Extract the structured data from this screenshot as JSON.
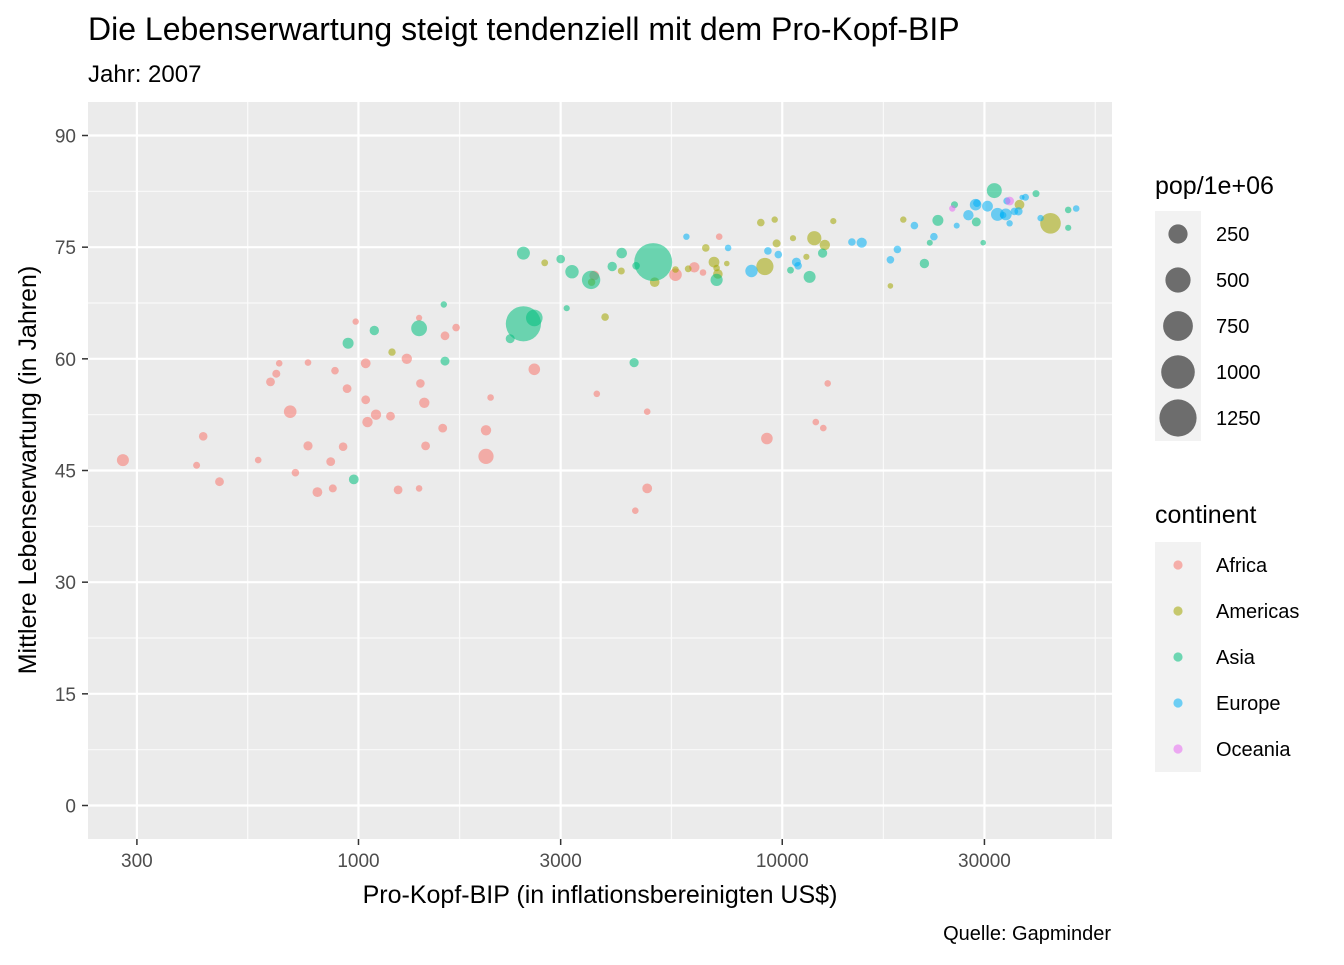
{
  "chart_data": {
    "type": "scatter",
    "title": "Die Lebenserwartung steigt tendenziell mit dem Pro-Kopf-BIP",
    "subtitle": "Jahr: 2007",
    "xlabel": "Pro-Kopf-BIP (in inflationsbereinigten US$)",
    "ylabel": "Mittlere Lebenserwartung (in Jahren)",
    "caption": "Quelle: Gapminder",
    "x_scale": "log10",
    "xlim": [
      230,
      60000
    ],
    "ylim": [
      -4.5,
      94.5
    ],
    "x_ticks": [
      300,
      1000,
      3000,
      10000,
      30000
    ],
    "x_tick_labels": [
      "300",
      "1000",
      "3000",
      "10000",
      "30000"
    ],
    "y_ticks": [
      0,
      15,
      30,
      45,
      60,
      75,
      90
    ],
    "y_tick_labels": [
      "0",
      "15",
      "30",
      "45",
      "60",
      "75",
      "90"
    ],
    "grid": true,
    "legend_position": "right",
    "size_legend": {
      "title": "pop/1e+06",
      "values": [
        250,
        500,
        750,
        1000,
        1250
      ],
      "labels": [
        "250",
        "500",
        "750",
        "1000",
        "1250"
      ]
    },
    "color_legend": {
      "title": "continent",
      "entries": [
        {
          "name": "Africa",
          "color": "#F8766D"
        },
        {
          "name": "Americas",
          "color": "#A3A500"
        },
        {
          "name": "Asia",
          "color": "#00BF7D"
        },
        {
          "name": "Europe",
          "color": "#00B0F6"
        },
        {
          "name": "Oceania",
          "color": "#E76BF3"
        }
      ]
    },
    "series": [
      {
        "name": "Africa",
        "color": "#F8766D",
        "points": [
          {
            "x": 278,
            "y": 46.4,
            "pop": 64
          },
          {
            "x": 415,
            "y": 45.7,
            "pop": 7
          },
          {
            "x": 430,
            "y": 49.6,
            "pop": 18
          },
          {
            "x": 470,
            "y": 43.5,
            "pop": 20
          },
          {
            "x": 580,
            "y": 46.4,
            "pop": 5
          },
          {
            "x": 620,
            "y": 56.9,
            "pop": 20
          },
          {
            "x": 640,
            "y": 58.0,
            "pop": 14
          },
          {
            "x": 650,
            "y": 59.4,
            "pop": 5
          },
          {
            "x": 690,
            "y": 52.9,
            "pop": 76
          },
          {
            "x": 710,
            "y": 44.7,
            "pop": 10
          },
          {
            "x": 760,
            "y": 48.3,
            "pop": 25
          },
          {
            "x": 760,
            "y": 59.5,
            "pop": 5
          },
          {
            "x": 800,
            "y": 42.1,
            "pop": 32
          },
          {
            "x": 860,
            "y": 46.2,
            "pop": 20
          },
          {
            "x": 870,
            "y": 42.6,
            "pop": 14
          },
          {
            "x": 880,
            "y": 58.4,
            "pop": 10
          },
          {
            "x": 920,
            "y": 48.2,
            "pop": 18
          },
          {
            "x": 940,
            "y": 56.0,
            "pop": 20
          },
          {
            "x": 985,
            "y": 65.0,
            "pop": 4
          },
          {
            "x": 1040,
            "y": 54.5,
            "pop": 20
          },
          {
            "x": 1040,
            "y": 59.4,
            "pop": 33
          },
          {
            "x": 1050,
            "y": 51.5,
            "pop": 40
          },
          {
            "x": 1100,
            "y": 52.5,
            "pop": 40
          },
          {
            "x": 1190,
            "y": 52.3,
            "pop": 20
          },
          {
            "x": 1240,
            "y": 42.4,
            "pop": 20
          },
          {
            "x": 1300,
            "y": 60.0,
            "pop": 39
          },
          {
            "x": 1390,
            "y": 65.5,
            "pop": 3
          },
          {
            "x": 1400,
            "y": 56.7,
            "pop": 18
          },
          {
            "x": 1390,
            "y": 42.6,
            "pop": 5
          },
          {
            "x": 1430,
            "y": 54.1,
            "pop": 40
          },
          {
            "x": 1440,
            "y": 48.3,
            "pop": 20
          },
          {
            "x": 1580,
            "y": 50.7,
            "pop": 20
          },
          {
            "x": 1600,
            "y": 63.1,
            "pop": 20
          },
          {
            "x": 1700,
            "y": 64.2,
            "pop": 10
          },
          {
            "x": 2000,
            "y": 46.9,
            "pop": 135
          },
          {
            "x": 2000,
            "y": 50.4,
            "pop": 40
          },
          {
            "x": 2050,
            "y": 54.8,
            "pop": 5
          },
          {
            "x": 2600,
            "y": 58.6,
            "pop": 57
          },
          {
            "x": 3600,
            "y": 71.2,
            "pop": 33
          },
          {
            "x": 3650,
            "y": 55.3,
            "pop": 5
          },
          {
            "x": 4500,
            "y": 39.6,
            "pop": 5
          },
          {
            "x": 4800,
            "y": 42.6,
            "pop": 32
          },
          {
            "x": 4800,
            "y": 52.9,
            "pop": 5
          },
          {
            "x": 5600,
            "y": 71.3,
            "pop": 74
          },
          {
            "x": 6200,
            "y": 72.3,
            "pop": 40
          },
          {
            "x": 7100,
            "y": 76.4,
            "pop": 5
          },
          {
            "x": 9200,
            "y": 49.3,
            "pop": 57
          },
          {
            "x": 12000,
            "y": 51.5,
            "pop": 5
          },
          {
            "x": 12500,
            "y": 50.7,
            "pop": 5
          },
          {
            "x": 12800,
            "y": 56.7,
            "pop": 5
          },
          {
            "x": 6500,
            "y": 71.6,
            "pop": 5
          }
        ]
      },
      {
        "name": "Americas",
        "color": "#A3A500",
        "points": [
          {
            "x": 1200,
            "y": 60.9,
            "pop": 9
          },
          {
            "x": 2750,
            "y": 72.9,
            "pop": 6
          },
          {
            "x": 3550,
            "y": 70.3,
            "pop": 9
          },
          {
            "x": 3820,
            "y": 65.6,
            "pop": 10
          },
          {
            "x": 4170,
            "y": 71.8,
            "pop": 7
          },
          {
            "x": 5000,
            "y": 70.3,
            "pop": 30
          },
          {
            "x": 5600,
            "y": 72.0,
            "pop": 5
          },
          {
            "x": 6000,
            "y": 72.1,
            "pop": 6
          },
          {
            "x": 6600,
            "y": 74.9,
            "pop": 10
          },
          {
            "x": 6900,
            "y": 73.0,
            "pop": 44
          },
          {
            "x": 7000,
            "y": 72.2,
            "pop": 5
          },
          {
            "x": 7050,
            "y": 71.4,
            "pop": 30
          },
          {
            "x": 7400,
            "y": 72.8,
            "pop": 1
          },
          {
            "x": 8900,
            "y": 78.3,
            "pop": 11
          },
          {
            "x": 9100,
            "y": 72.4,
            "pop": 190
          },
          {
            "x": 9600,
            "y": 78.7,
            "pop": 4
          },
          {
            "x": 9700,
            "y": 75.5,
            "pop": 13
          },
          {
            "x": 10600,
            "y": 76.2,
            "pop": 3
          },
          {
            "x": 11400,
            "y": 73.7,
            "pop": 3
          },
          {
            "x": 11900,
            "y": 76.2,
            "pop": 108
          },
          {
            "x": 12600,
            "y": 75.3,
            "pop": 40
          },
          {
            "x": 13200,
            "y": 78.5,
            "pop": 3
          },
          {
            "x": 18000,
            "y": 69.8,
            "pop": 1
          },
          {
            "x": 19300,
            "y": 78.7,
            "pop": 4
          },
          {
            "x": 36300,
            "y": 80.7,
            "pop": 33
          },
          {
            "x": 42950,
            "y": 78.2,
            "pop": 301
          }
        ]
      },
      {
        "name": "Asia",
        "color": "#00BF7D",
        "points": [
          {
            "x": 945,
            "y": 62.1,
            "pop": 47
          },
          {
            "x": 975,
            "y": 43.8,
            "pop": 32
          },
          {
            "x": 1090,
            "y": 63.8,
            "pop": 28
          },
          {
            "x": 1390,
            "y": 64.1,
            "pop": 150
          },
          {
            "x": 1590,
            "y": 67.3,
            "pop": 4
          },
          {
            "x": 1600,
            "y": 59.7,
            "pop": 23
          },
          {
            "x": 2450,
            "y": 74.2,
            "pop": 85
          },
          {
            "x": 2450,
            "y": 64.7,
            "pop": 1110
          },
          {
            "x": 2280,
            "y": 62.7,
            "pop": 22
          },
          {
            "x": 2600,
            "y": 65.5,
            "pop": 169
          },
          {
            "x": 3000,
            "y": 73.4,
            "pop": 19
          },
          {
            "x": 3100,
            "y": 66.8,
            "pop": 3
          },
          {
            "x": 3190,
            "y": 71.7,
            "pop": 91
          },
          {
            "x": 3540,
            "y": 70.6,
            "pop": 224
          },
          {
            "x": 3970,
            "y": 72.4,
            "pop": 28
          },
          {
            "x": 4180,
            "y": 74.2,
            "pop": 42
          },
          {
            "x": 4470,
            "y": 59.5,
            "pop": 24
          },
          {
            "x": 4520,
            "y": 72.5,
            "pop": 10
          },
          {
            "x": 4960,
            "y": 73.0,
            "pop": 1319
          },
          {
            "x": 7000,
            "y": 70.6,
            "pop": 69
          },
          {
            "x": 10460,
            "y": 71.9,
            "pop": 6
          },
          {
            "x": 11600,
            "y": 71.0,
            "pop": 65
          },
          {
            "x": 12450,
            "y": 74.2,
            "pop": 24
          },
          {
            "x": 21650,
            "y": 72.8,
            "pop": 28
          },
          {
            "x": 22300,
            "y": 75.6,
            "pop": 2
          },
          {
            "x": 23300,
            "y": 78.6,
            "pop": 49
          },
          {
            "x": 25500,
            "y": 80.7,
            "pop": 7
          },
          {
            "x": 28700,
            "y": 78.4,
            "pop": 23
          },
          {
            "x": 29800,
            "y": 75.6,
            "pop": 1
          },
          {
            "x": 31650,
            "y": 82.6,
            "pop": 127
          },
          {
            "x": 39700,
            "y": 82.2,
            "pop": 7
          },
          {
            "x": 47300,
            "y": 80.0,
            "pop": 5
          },
          {
            "x": 47300,
            "y": 77.6,
            "pop": 3
          }
        ]
      },
      {
        "name": "Europe",
        "color": "#00B0F6",
        "points": [
          {
            "x": 5940,
            "y": 76.4,
            "pop": 4
          },
          {
            "x": 7450,
            "y": 74.9,
            "pop": 5
          },
          {
            "x": 8460,
            "y": 71.8,
            "pop": 71
          },
          {
            "x": 9250,
            "y": 74.5,
            "pop": 10
          },
          {
            "x": 9790,
            "y": 74.0,
            "pop": 10
          },
          {
            "x": 10800,
            "y": 73.0,
            "pop": 22
          },
          {
            "x": 10900,
            "y": 72.5,
            "pop": 10
          },
          {
            "x": 14600,
            "y": 75.7,
            "pop": 10
          },
          {
            "x": 15400,
            "y": 75.6,
            "pop": 38
          },
          {
            "x": 18000,
            "y": 73.3,
            "pop": 10
          },
          {
            "x": 18700,
            "y": 74.7,
            "pop": 10
          },
          {
            "x": 20500,
            "y": 77.9,
            "pop": 10
          },
          {
            "x": 22800,
            "y": 76.4,
            "pop": 10
          },
          {
            "x": 25800,
            "y": 77.9,
            "pop": 2
          },
          {
            "x": 27500,
            "y": 79.3,
            "pop": 40
          },
          {
            "x": 28600,
            "y": 80.7,
            "pop": 58
          },
          {
            "x": 28800,
            "y": 80.9,
            "pop": 10
          },
          {
            "x": 30500,
            "y": 80.5,
            "pop": 45
          },
          {
            "x": 32200,
            "y": 79.4,
            "pop": 82
          },
          {
            "x": 33200,
            "y": 79.3,
            "pop": 5
          },
          {
            "x": 33700,
            "y": 79.4,
            "pop": 60
          },
          {
            "x": 33900,
            "y": 81.2,
            "pop": 8
          },
          {
            "x": 34400,
            "y": 78.2,
            "pop": 4
          },
          {
            "x": 35300,
            "y": 79.8,
            "pop": 10
          },
          {
            "x": 36100,
            "y": 79.8,
            "pop": 16
          },
          {
            "x": 36800,
            "y": 81.7,
            "pop": 0.3
          },
          {
            "x": 37500,
            "y": 81.7,
            "pop": 7
          },
          {
            "x": 40700,
            "y": 78.9,
            "pop": 4
          },
          {
            "x": 49400,
            "y": 80.2,
            "pop": 5
          }
        ]
      },
      {
        "name": "Oceania",
        "color": "#E76BF3",
        "points": [
          {
            "x": 25200,
            "y": 80.2,
            "pop": 4
          },
          {
            "x": 34400,
            "y": 81.2,
            "pop": 20
          }
        ]
      }
    ]
  }
}
